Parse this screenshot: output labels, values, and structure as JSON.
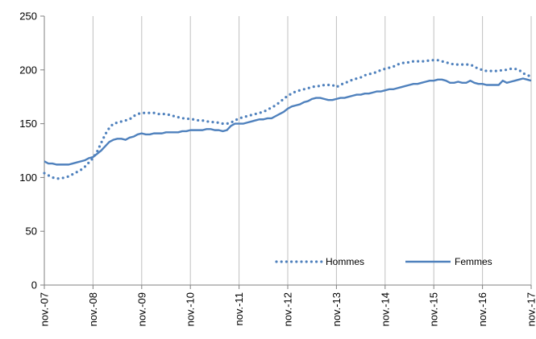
{
  "chart_data": {
    "type": "line",
    "title": "",
    "xlabel": "",
    "ylabel": "",
    "ylim": [
      0,
      250
    ],
    "y_ticks": [
      0,
      50,
      100,
      150,
      200,
      250
    ],
    "grid": "vertical",
    "legend_position": "bottom-right",
    "x_tick_labels": [
      "nov.-07",
      "nov.-08",
      "nov.-09",
      "nov.-10",
      "nov.-11",
      "nov.-12",
      "nov.-13",
      "nov.-14",
      "nov.-15",
      "nov.-16",
      "nov.-17"
    ],
    "x_start": "nov.-07",
    "x_end": "nov.-17",
    "points_per_year": 12,
    "series": [
      {
        "name": "Hommes",
        "style": "dotted",
        "color": "#4f81bd",
        "values": [
          104,
          102,
          100,
          99,
          99,
          100,
          101,
          103,
          105,
          107,
          110,
          114,
          118,
          124,
          132,
          140,
          146,
          150,
          151,
          152,
          153,
          154,
          157,
          159,
          160,
          160,
          160,
          160,
          159,
          159,
          159,
          158,
          157,
          156,
          155,
          155,
          154,
          154,
          153,
          153,
          152,
          152,
          151,
          151,
          150,
          150,
          151,
          153,
          155,
          156,
          157,
          158,
          159,
          160,
          161,
          163,
          165,
          167,
          170,
          173,
          176,
          178,
          180,
          181,
          182,
          183,
          184,
          185,
          185,
          186,
          186,
          186,
          184,
          186,
          188,
          189,
          191,
          192,
          193,
          195,
          196,
          197,
          198,
          200,
          201,
          202,
          203,
          205,
          206,
          207,
          207,
          208,
          208,
          208,
          208,
          209,
          209,
          209,
          208,
          207,
          206,
          205,
          205,
          205,
          205,
          205,
          203,
          201,
          200,
          199,
          199,
          199,
          199,
          200,
          200,
          201,
          201,
          200,
          197,
          195,
          194
        ]
      },
      {
        "name": "Femmes",
        "style": "solid",
        "color": "#4f81bd",
        "values": [
          115,
          113,
          113,
          112,
          112,
          112,
          112,
          113,
          114,
          115,
          116,
          118,
          119,
          122,
          125,
          129,
          133,
          135,
          136,
          136,
          135,
          137,
          138,
          140,
          141,
          140,
          140,
          141,
          141,
          141,
          142,
          142,
          142,
          142,
          143,
          143,
          144,
          144,
          144,
          144,
          145,
          145,
          144,
          144,
          143,
          144,
          148,
          150,
          150,
          150,
          151,
          152,
          153,
          154,
          154,
          155,
          155,
          157,
          159,
          161,
          164,
          166,
          167,
          168,
          170,
          171,
          173,
          174,
          174,
          173,
          172,
          172,
          173,
          174,
          174,
          175,
          176,
          177,
          177,
          178,
          178,
          179,
          180,
          180,
          181,
          182,
          182,
          183,
          184,
          185,
          186,
          187,
          187,
          188,
          189,
          190,
          190,
          191,
          191,
          190,
          188,
          188,
          189,
          188,
          188,
          190,
          188,
          187,
          187,
          186,
          186,
          186,
          186,
          190,
          188,
          189,
          190,
          191,
          192,
          191,
          190
        ]
      }
    ]
  }
}
